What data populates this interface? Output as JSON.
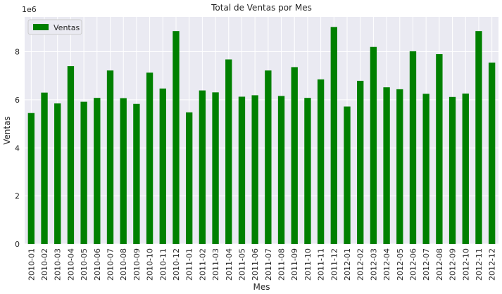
{
  "chart_data": {
    "type": "bar",
    "title": "Total de Ventas por Mes",
    "xlabel": "Mes",
    "ylabel": "Ventas",
    "y_scale_label": "1e6",
    "ylim": [
      0,
      9.45
    ],
    "yticks": [
      0,
      2,
      4,
      6,
      8
    ],
    "grid": true,
    "legend": {
      "placement": "top-left",
      "entries": [
        "Ventas"
      ]
    },
    "categories": [
      "2010-01",
      "2010-02",
      "2010-03",
      "2010-04",
      "2010-05",
      "2010-06",
      "2010-07",
      "2010-08",
      "2010-09",
      "2010-10",
      "2010-11",
      "2010-12",
      "2011-01",
      "2011-02",
      "2011-03",
      "2011-04",
      "2011-05",
      "2011-06",
      "2011-07",
      "2011-08",
      "2011-09",
      "2011-10",
      "2011-11",
      "2011-12",
      "2012-01",
      "2012-02",
      "2012-03",
      "2012-04",
      "2012-05",
      "2012-06",
      "2012-07",
      "2012-08",
      "2012-09",
      "2012-10",
      "2012-11",
      "2012-12"
    ],
    "series": [
      {
        "name": "Ventas",
        "color": "#008000",
        "values": [
          5.45,
          6.3,
          5.85,
          7.4,
          5.92,
          6.08,
          7.22,
          6.07,
          5.83,
          7.13,
          6.47,
          8.86,
          5.48,
          6.39,
          6.31,
          7.68,
          6.13,
          6.19,
          7.22,
          6.16,
          7.36,
          6.08,
          6.85,
          9.03,
          5.72,
          6.79,
          8.2,
          6.52,
          6.44,
          8.02,
          6.25,
          7.9,
          6.12,
          6.26,
          8.86,
          7.55
        ]
      }
    ]
  }
}
